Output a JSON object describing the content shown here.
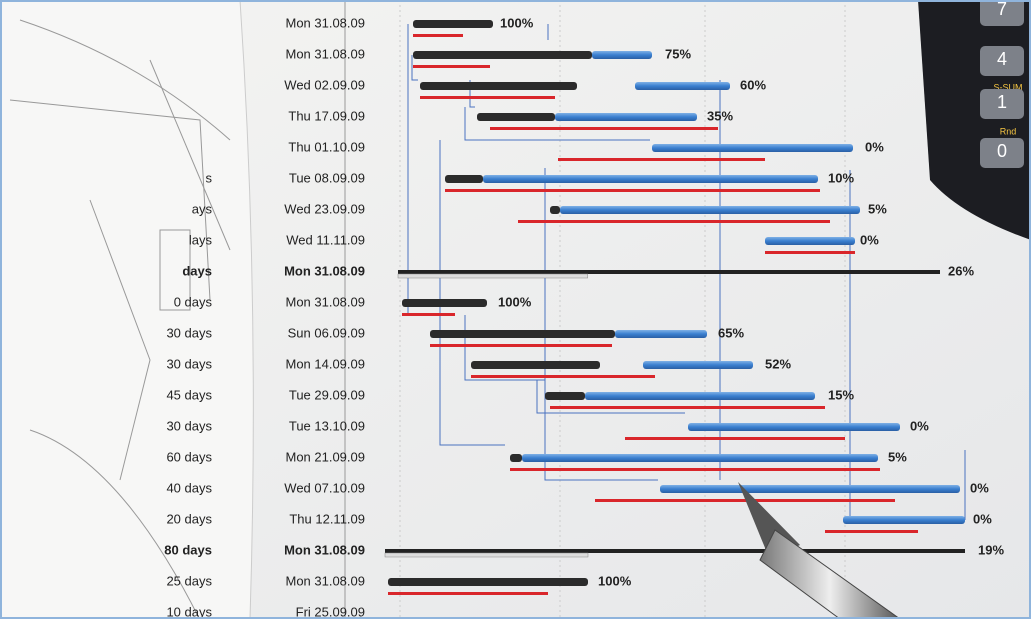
{
  "rows": [
    {
      "date": "Mon 31.08.09",
      "percent": "100%"
    },
    {
      "date": "Mon 31.08.09",
      "percent": "75%"
    },
    {
      "date": "Wed 02.09.09",
      "percent": "60%"
    },
    {
      "date": "Thu 17.09.09",
      "percent": "35%"
    },
    {
      "date": "Thu 01.10.09",
      "percent": "0%"
    },
    {
      "duration": "s",
      "date": "Tue 08.09.09",
      "percent": "10%"
    },
    {
      "duration": "ays",
      "date": "Wed 23.09.09",
      "percent": "5%"
    },
    {
      "duration": "lays",
      "date": "Wed 11.11.09",
      "percent": "0%"
    },
    {
      "duration": "days",
      "date": "Mon 31.08.09",
      "percent": "26%",
      "summary": true
    },
    {
      "duration": "0 days",
      "date": "Mon 31.08.09",
      "percent": "100%"
    },
    {
      "duration": "30 days",
      "date": "Sun 06.09.09",
      "percent": "65%"
    },
    {
      "duration": "30 days",
      "date": "Mon 14.09.09",
      "percent": "52%"
    },
    {
      "duration": "45 days",
      "date": "Tue 29.09.09",
      "percent": "15%"
    },
    {
      "duration": "30 days",
      "date": "Tue 13.10.09",
      "percent": "0%"
    },
    {
      "duration": "60 days",
      "date": "Mon 21.09.09",
      "percent": "5%"
    },
    {
      "duration": "40 days",
      "date": "Wed 07.10.09",
      "percent": "0%"
    },
    {
      "duration": "20 days",
      "date": "Thu 12.11.09",
      "percent": "0%"
    },
    {
      "duration": "80 days",
      "date": "Mon 31.08.09",
      "percent": "19%",
      "summary": true
    },
    {
      "duration": "25 days",
      "date": "Mon 31.08.09",
      "percent": "100%"
    },
    {
      "duration": "10 days",
      "date": "Fri 25.09.09"
    }
  ],
  "calculator": {
    "keys": [
      "7",
      "4",
      "S-SUM",
      "1",
      "Rnd",
      "0"
    ]
  }
}
